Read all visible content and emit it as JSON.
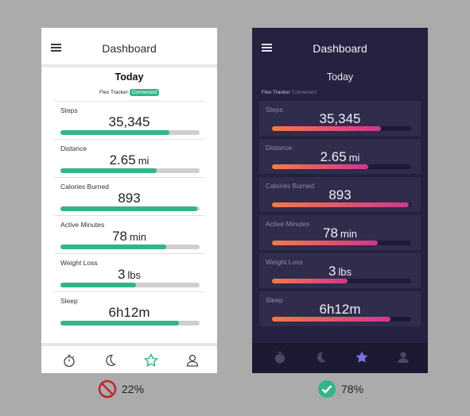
{
  "light": {
    "title": "Dashboard",
    "today": "Today",
    "tracker_label": "Flex Tracker",
    "tracker_status": "Connected",
    "metrics": [
      {
        "label": "Steps",
        "value": "35,345",
        "unit": "",
        "progress": 0.78
      },
      {
        "label": "Distance",
        "value": "2.65",
        "unit": "mi",
        "progress": 0.69
      },
      {
        "label": "Calories Burned",
        "value": "893",
        "unit": "",
        "progress": 0.98
      },
      {
        "label": "Active Minutes",
        "value": "78",
        "unit": "min",
        "progress": 0.76
      },
      {
        "label": "Weight Loss",
        "value": "3",
        "unit": "lbs",
        "progress": 0.54
      },
      {
        "label": "Sleep",
        "value": "6h12m",
        "unit": "",
        "progress": 0.85
      }
    ],
    "active_tab": "favorites",
    "colors": {
      "accent": "#35b38b",
      "track": "#cfcfcf"
    }
  },
  "dark": {
    "title": "Dashboard",
    "today": "Today",
    "tracker_label": "Flex Tracker",
    "tracker_status": "Connected",
    "metrics": [
      {
        "label": "Steps",
        "value": "35,345",
        "unit": "",
        "progress": 0.78
      },
      {
        "label": "Distance",
        "value": "2.65",
        "unit": "mi",
        "progress": 0.69
      },
      {
        "label": "Calories Burned",
        "value": "893",
        "unit": "",
        "progress": 0.98
      },
      {
        "label": "Active Minutes",
        "value": "78",
        "unit": "min",
        "progress": 0.76
      },
      {
        "label": "Weight Loss",
        "value": "3",
        "unit": "lbs",
        "progress": 0.54
      },
      {
        "label": "Sleep",
        "value": "6h12m",
        "unit": "",
        "progress": 0.85
      }
    ],
    "active_tab": "favorites",
    "colors": {
      "background": "#252140",
      "gradient_start": "#f37a45",
      "gradient_end": "#d2358f",
      "active_tab": "#7b72d6"
    }
  },
  "results": {
    "bad": {
      "percent": "22%",
      "icon": "prohibited-icon"
    },
    "good": {
      "percent": "78%",
      "icon": "check-circle-icon"
    }
  }
}
